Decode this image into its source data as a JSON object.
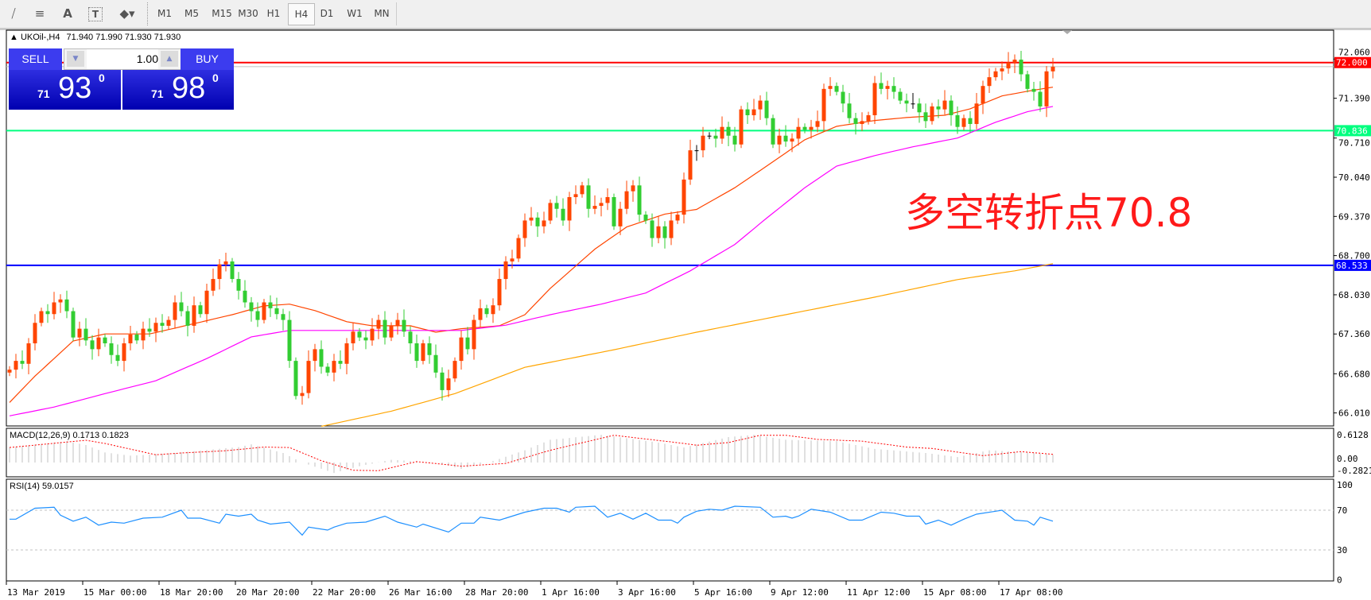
{
  "toolbar": {
    "icons": [
      "fibonacci-fan-icon",
      "fibonacci-retracement-icon",
      "text-icon",
      "text-label-icon",
      "arrows-icon"
    ],
    "text_icon_label": "A",
    "timeframes": [
      "M1",
      "M5",
      "M15",
      "M30",
      "H1",
      "H4",
      "D1",
      "W1",
      "MN"
    ],
    "active_timeframe": "H4"
  },
  "chart": {
    "title": "UKOil-,H4",
    "ohlc_text": "71.940 71.990 71.930 71.930",
    "trade_panel": {
      "sell_label": "SELL",
      "buy_label": "BUY",
      "volume": "1.00",
      "sell_price": {
        "prefix": "71",
        "big": "93",
        "sup": "0"
      },
      "buy_price": {
        "prefix": "71",
        "big": "98",
        "sup": "0"
      }
    },
    "annotation": "多空转折点70.8",
    "annotation_color": "#ff1a1a"
  },
  "colors": {
    "bull": "#ff4500",
    "bear": "#32cd32",
    "ma_fast": "#ff4500",
    "ma_mid": "#ff00ff",
    "ma_slow": "#ffa500",
    "macd_hist": "#c0c0c0",
    "macd_signal": "#ff0000",
    "rsi": "#1e90ff"
  },
  "chart_data": [
    {
      "type": "candlestick",
      "price_axis_ticks": [
        "72.060",
        "71.390",
        "70.710",
        "70.040",
        "69.370",
        "68.700",
        "68.030",
        "67.360",
        "66.680",
        "66.010"
      ],
      "ylim": [
        65.75,
        72.5
      ],
      "time_axis_labels": [
        "13 Mar 2019",
        "15 Mar 00:00",
        "18 Mar 20:00",
        "20 Mar 20:00",
        "22 Mar 20:00",
        "26 Mar 16:00",
        "28 Mar 20:00",
        "1 Apr 16:00",
        "3 Apr 16:00",
        "5 Apr 16:00",
        "9 Apr 12:00",
        "11 Apr 12:00",
        "15 Apr 08:00",
        "17 Apr 08:00"
      ],
      "first_open": 66.7,
      "close": [
        66.75,
        66.9,
        66.85,
        67.2,
        67.55,
        67.75,
        67.7,
        67.9,
        67.95,
        67.75,
        67.3,
        67.45,
        67.25,
        67.1,
        67.3,
        67.2,
        67.0,
        66.9,
        67.2,
        67.35,
        67.25,
        67.45,
        67.4,
        67.55,
        67.5,
        67.6,
        67.9,
        67.75,
        67.5,
        67.85,
        67.7,
        68.1,
        68.3,
        68.55,
        68.6,
        68.3,
        68.1,
        67.9,
        67.75,
        67.6,
        67.9,
        67.8,
        67.7,
        67.6,
        66.9,
        66.3,
        66.35,
        66.9,
        67.1,
        66.8,
        66.7,
        66.9,
        66.85,
        67.2,
        67.4,
        67.3,
        67.25,
        67.45,
        67.6,
        67.3,
        67.5,
        67.6,
        67.4,
        67.2,
        66.9,
        67.2,
        67.0,
        66.7,
        66.4,
        66.6,
        66.9,
        67.3,
        67.1,
        67.6,
        67.8,
        67.7,
        67.85,
        68.3,
        68.6,
        68.65,
        69.0,
        69.3,
        69.35,
        69.2,
        69.3,
        69.6,
        69.5,
        69.3,
        69.7,
        69.75,
        69.9,
        69.5,
        69.55,
        69.6,
        69.7,
        69.2,
        69.5,
        69.8,
        69.9,
        69.4,
        69.3,
        69.0,
        69.2,
        69.0,
        69.3,
        69.4,
        70.0,
        70.5,
        70.5,
        70.75,
        70.75,
        70.7,
        70.9,
        70.75,
        70.6,
        71.2,
        71.1,
        71.2,
        71.35,
        71.05,
        70.6,
        70.75,
        70.65,
        70.7,
        70.9,
        70.85,
        70.9,
        71.0,
        71.55,
        71.6,
        71.5,
        71.3,
        71.05,
        70.95,
        71.0,
        71.1,
        71.65,
        71.55,
        71.6,
        71.5,
        71.35,
        71.3,
        71.3,
        71.15,
        71.0,
        71.25,
        71.2,
        71.35,
        71.1,
        70.9,
        71.05,
        70.95,
        71.3,
        71.6,
        71.75,
        71.85,
        71.9,
        72.0,
        72.05,
        71.8,
        71.55,
        71.5,
        71.25,
        71.85,
        71.93
      ],
      "moving_averages": [
        {
          "color_key": "ma_fast",
          "points": [
            [
              0,
              66.19
            ],
            [
              4,
              66.64
            ],
            [
              10,
              67.24
            ],
            [
              15,
              67.36
            ],
            [
              22,
              67.36
            ],
            [
              26,
              67.46
            ],
            [
              35,
              67.69
            ],
            [
              40,
              67.84
            ],
            [
              44,
              67.87
            ],
            [
              48,
              67.76
            ],
            [
              53,
              67.57
            ],
            [
              57,
              67.5
            ],
            [
              63,
              67.5
            ],
            [
              67,
              67.39
            ],
            [
              71,
              67.45
            ],
            [
              77,
              67.5
            ],
            [
              81,
              67.69
            ],
            [
              85,
              68.14
            ],
            [
              92,
              68.81
            ],
            [
              97,
              69.19
            ],
            [
              103,
              69.41
            ],
            [
              108,
              69.49
            ],
            [
              114,
              69.86
            ],
            [
              119,
              70.23
            ],
            [
              125,
              70.68
            ],
            [
              130,
              70.91
            ],
            [
              136,
              71.01
            ],
            [
              141,
              71.06
            ],
            [
              147,
              71.1
            ],
            [
              151,
              71.21
            ],
            [
              156,
              71.43
            ],
            [
              160,
              71.51
            ],
            [
              164,
              71.58
            ]
          ]
        },
        {
          "color_key": "ma_mid",
          "points": [
            [
              0,
              65.96
            ],
            [
              7,
              66.11
            ],
            [
              15,
              66.34
            ],
            [
              23,
              66.56
            ],
            [
              31,
              66.94
            ],
            [
              38,
              67.31
            ],
            [
              44,
              67.42
            ],
            [
              53,
              67.42
            ],
            [
              63,
              67.42
            ],
            [
              71,
              67.42
            ],
            [
              78,
              67.51
            ],
            [
              85,
              67.69
            ],
            [
              93,
              67.87
            ],
            [
              100,
              68.06
            ],
            [
              107,
              68.44
            ],
            [
              114,
              68.89
            ],
            [
              119,
              69.34
            ],
            [
              125,
              69.86
            ],
            [
              130,
              70.23
            ],
            [
              136,
              70.41
            ],
            [
              142,
              70.56
            ],
            [
              149,
              70.71
            ],
            [
              155,
              70.98
            ],
            [
              160,
              71.16
            ],
            [
              164,
              71.25
            ]
          ]
        },
        {
          "color_key": "ma_slow",
          "points": [
            [
              49,
              65.78
            ],
            [
              60,
              66.04
            ],
            [
              70,
              66.34
            ],
            [
              81,
              66.79
            ],
            [
              95,
              67.09
            ],
            [
              108,
              67.39
            ],
            [
              122,
              67.69
            ],
            [
              136,
              67.99
            ],
            [
              149,
              68.29
            ],
            [
              158,
              68.44
            ],
            [
              164,
              68.56
            ]
          ]
        }
      ],
      "horizontal_lines": [
        {
          "value": 72.0,
          "label": "72.000",
          "color": "#ff0000"
        },
        {
          "value": 71.93,
          "label": "",
          "color": "#c0c0c0"
        },
        {
          "value": 70.836,
          "label": "70.836",
          "color": "#00ff7f"
        },
        {
          "value": 68.533,
          "label": "68.533",
          "color": "#0000ff"
        }
      ]
    },
    {
      "type": "bar",
      "title": "MACD(12,26,9) 0.1713 0.1823",
      "ylim": [
        -0.2821,
        0.6128
      ],
      "axis_ticks": [
        "0.6128",
        "0.00",
        "-0.2821"
      ],
      "histogram_points": [
        [
          0,
          0.33
        ],
        [
          9,
          0.47
        ],
        [
          12,
          0.385
        ],
        [
          15,
          0.22
        ],
        [
          19,
          0.15
        ],
        [
          26,
          0.21
        ],
        [
          36,
          0.34
        ],
        [
          38,
          0.4
        ],
        [
          43,
          0.21
        ],
        [
          46,
          0.0
        ],
        [
          51,
          -0.23
        ],
        [
          55,
          -0.08
        ],
        [
          60,
          0.06
        ],
        [
          67,
          0.0
        ],
        [
          71,
          -0.14
        ],
        [
          76,
          0.03
        ],
        [
          81,
          0.27
        ],
        [
          85,
          0.5
        ],
        [
          93,
          0.61
        ],
        [
          102,
          0.44
        ],
        [
          106,
          0.33
        ],
        [
          113,
          0.56
        ],
        [
          117,
          0.61
        ],
        [
          122,
          0.5
        ],
        [
          130,
          0.47
        ],
        [
          136,
          0.3
        ],
        [
          144,
          0.21
        ],
        [
          149,
          0.12
        ],
        [
          154,
          0.27
        ],
        [
          161,
          0.21
        ],
        [
          164,
          0.17
        ]
      ],
      "signal_points": [
        [
          0,
          0.33
        ],
        [
          12,
          0.49
        ],
        [
          15,
          0.42
        ],
        [
          23,
          0.17
        ],
        [
          27,
          0.21
        ],
        [
          34,
          0.26
        ],
        [
          40,
          0.34
        ],
        [
          44,
          0.33
        ],
        [
          49,
          0.04
        ],
        [
          54,
          -0.17
        ],
        [
          58,
          -0.18
        ],
        [
          64,
          0.02
        ],
        [
          71,
          -0.08
        ],
        [
          78,
          -0.02
        ],
        [
          85,
          0.27
        ],
        [
          95,
          0.6
        ],
        [
          106,
          0.42
        ],
        [
          108,
          0.38
        ],
        [
          113,
          0.44
        ],
        [
          118,
          0.6
        ],
        [
          122,
          0.6
        ],
        [
          127,
          0.51
        ],
        [
          134,
          0.47
        ],
        [
          141,
          0.34
        ],
        [
          145,
          0.31
        ],
        [
          153,
          0.15
        ],
        [
          159,
          0.24
        ],
        [
          164,
          0.18
        ]
      ]
    },
    {
      "type": "line",
      "title": "RSI(14) 59.0157",
      "ylim": [
        0,
        100
      ],
      "axis_ticks": [
        "100",
        "70",
        "30",
        "0"
      ],
      "levels": [
        70,
        30
      ],
      "points": [
        [
          0,
          61
        ],
        [
          1,
          61
        ],
        [
          4,
          72
        ],
        [
          7,
          73
        ],
        [
          8,
          65
        ],
        [
          10,
          59
        ],
        [
          12,
          63
        ],
        [
          14,
          55
        ],
        [
          16,
          58
        ],
        [
          18,
          57
        ],
        [
          21,
          62
        ],
        [
          24,
          63
        ],
        [
          27,
          70
        ],
        [
          28,
          62
        ],
        [
          30,
          62
        ],
        [
          33,
          57
        ],
        [
          34,
          66
        ],
        [
          36,
          64
        ],
        [
          38,
          66
        ],
        [
          39,
          60
        ],
        [
          41,
          56
        ],
        [
          44,
          58
        ],
        [
          46,
          45
        ],
        [
          47,
          53
        ],
        [
          50,
          50
        ],
        [
          51,
          53
        ],
        [
          53,
          57
        ],
        [
          56,
          58
        ],
        [
          59,
          64
        ],
        [
          61,
          58
        ],
        [
          64,
          53
        ],
        [
          65,
          56
        ],
        [
          69,
          48
        ],
        [
          71,
          57
        ],
        [
          73,
          57
        ],
        [
          74,
          63
        ],
        [
          77,
          60
        ],
        [
          81,
          68
        ],
        [
          84,
          72
        ],
        [
          86,
          72
        ],
        [
          88,
          68
        ],
        [
          89,
          73
        ],
        [
          92,
          74
        ],
        [
          94,
          63
        ],
        [
          96,
          67
        ],
        [
          98,
          61
        ],
        [
          100,
          67
        ],
        [
          102,
          60
        ],
        [
          104,
          60
        ],
        [
          105,
          57
        ],
        [
          106,
          63
        ],
        [
          108,
          69
        ],
        [
          110,
          71
        ],
        [
          112,
          70
        ],
        [
          114,
          74
        ],
        [
          118,
          73
        ],
        [
          120,
          63
        ],
        [
          122,
          64
        ],
        [
          123,
          62
        ],
        [
          124,
          64
        ],
        [
          126,
          71
        ],
        [
          129,
          68
        ],
        [
          132,
          60
        ],
        [
          134,
          60
        ],
        [
          137,
          68
        ],
        [
          139,
          67
        ],
        [
          141,
          64
        ],
        [
          143,
          64
        ],
        [
          144,
          56
        ],
        [
          146,
          60
        ],
        [
          148,
          55
        ],
        [
          150,
          61
        ],
        [
          152,
          66
        ],
        [
          155,
          69
        ],
        [
          156,
          70
        ],
        [
          158,
          60
        ],
        [
          160,
          59
        ],
        [
          161,
          55
        ],
        [
          162,
          63
        ],
        [
          163,
          61
        ],
        [
          164,
          59
        ]
      ]
    }
  ]
}
